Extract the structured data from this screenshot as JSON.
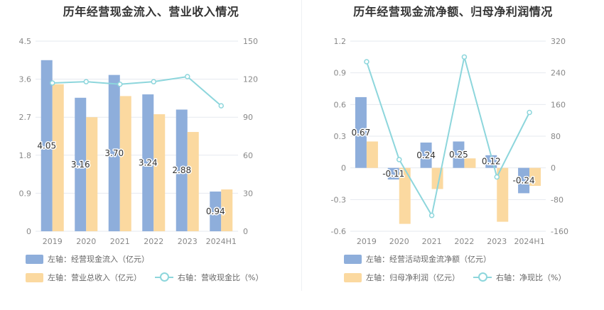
{
  "colors": {
    "bar1": "#8eaedb",
    "bar2": "#fbd9a0",
    "line": "#8dd6dc",
    "grid": "#e6e9ef",
    "tick": "#888888"
  },
  "chart_data": [
    {
      "type": "bar",
      "title": "历年经营现金流入、营业收入情况",
      "categories": [
        "2019",
        "2020",
        "2021",
        "2022",
        "2023",
        "2024H1"
      ],
      "y_left": {
        "ylim": [
          0,
          4.5
        ],
        "ticks": [
          "0",
          "0.9",
          "1.8",
          "2.7",
          "3.6",
          "4.5"
        ]
      },
      "y_right": {
        "ylim": [
          0,
          150
        ],
        "ticks": [
          "0",
          "30",
          "60",
          "90",
          "120",
          "150"
        ]
      },
      "series": [
        {
          "name": "左轴：经营现金流入（亿元）",
          "type": "bar",
          "axis": "left",
          "values": [
            4.05,
            3.16,
            3.7,
            3.24,
            2.88,
            0.94
          ],
          "labels": [
            "4.05",
            "3.16",
            "3.70",
            "3.24",
            "2.88",
            "0.94"
          ]
        },
        {
          "name": "左轴：营业总收入（亿元）",
          "type": "bar",
          "axis": "left",
          "values": [
            3.48,
            2.7,
            3.2,
            2.77,
            2.35,
            0.99
          ]
        },
        {
          "name": "右轴：营收现金比（%）",
          "type": "line",
          "axis": "right",
          "values": [
            117,
            118,
            116,
            118,
            122,
            99
          ]
        }
      ],
      "legend_position": "bottom-left"
    },
    {
      "type": "bar",
      "title": "历年经营现金流净额、归母净利润情况",
      "categories": [
        "2019",
        "2020",
        "2021",
        "2022",
        "2023",
        "2024H1"
      ],
      "y_left": {
        "ylim": [
          -0.6,
          1.2
        ],
        "ticks": [
          "-0.6",
          "-0.3",
          "0",
          "0.3",
          "0.6",
          "0.9",
          "1.2"
        ]
      },
      "y_right": {
        "ylim": [
          -160,
          320
        ],
        "ticks": [
          "-160",
          "-80",
          "0",
          "80",
          "160",
          "240",
          "320"
        ]
      },
      "series": [
        {
          "name": "左轴：经营活动现金流净额（亿元）",
          "type": "bar",
          "axis": "left",
          "values": [
            0.67,
            -0.11,
            0.24,
            0.25,
            0.12,
            -0.24
          ],
          "labels": [
            "0.67",
            "-0.11",
            "0.24",
            "0.25",
            "0.12",
            "-0.24"
          ]
        },
        {
          "name": "左轴：归母净利润（亿元）",
          "type": "bar",
          "axis": "left",
          "values": [
            0.25,
            -0.53,
            -0.2,
            0.09,
            -0.51,
            -0.17
          ]
        },
        {
          "name": "右轴：净现比（%）",
          "type": "line",
          "axis": "right",
          "values": [
            268,
            21,
            -120,
            280,
            -23,
            140
          ]
        }
      ],
      "legend_position": "bottom-left"
    }
  ]
}
